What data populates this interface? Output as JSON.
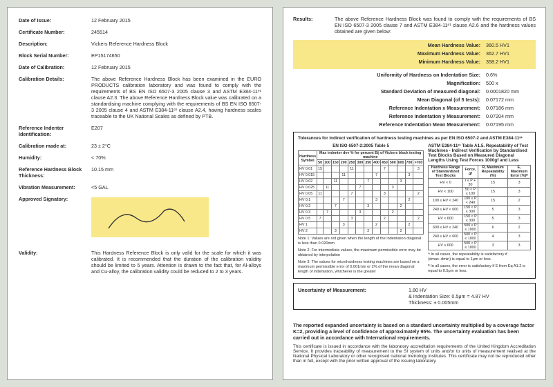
{
  "left": {
    "dateIssueL": "Date of Issue:",
    "dateIssue": "12 February 2015",
    "certL": "Certificate Number:",
    "cert": "245514",
    "descL": "Description:",
    "desc": "Vickers Reference Hardness Block",
    "serialL": "Block Serial Number:",
    "serial": "EP15174650",
    "calDateL": "Date of Calibration:",
    "calDate": "12 February 2015",
    "calDetL": "Calibration Details:",
    "calDet": "The above Reference Hardness Block has been examined in the EURO PRODUCTS calibration laboratory and was found to comply with the requirements of BS EN ISO 6507-3 2005 clause 3 and ASTM E384-11ᵉ¹ clause A2.3. The above Reference Hardness Block value was calibrated on a standardising machine complying with the requirements of BS EN ISO 6507-3 2005 clause 4 and ASTM E384-11ᵉ¹ clause A2.4, having hardness scales traceable to the UK National Scales as defined by PTB.",
    "indentL": "Reference Indenter Identification:",
    "indent": "E207",
    "tempL": "Calibration made at:",
    "temp": "23 ± 2°C",
    "humL": "Humidity:",
    "hum": "< 70%",
    "thickL": "Reference Hardness Block Thickness:",
    "thick": "10.15 mm",
    "vibL": "Vibration Measurement:",
    "vib": "<5 GAL",
    "sigL": "Approved Signatory:",
    "validL": "Validity:",
    "valid": "This Hardness Reference Block is only valid for the scale for which it was calibrated. It is recommended that the duration of the calibration validity should be limited to 5 years. Attention is drawn to the fact that, for Al-alloys and Cu-alloy, the calibration validity could be reduced to 2 to 3 years."
  },
  "right": {
    "resL": "Results:",
    "res": "The above Reference Hardness Block was found to comply with the requirements of BS EN ISO 6507-3 2005 clause 7 and ASTM E384-11ᵉ¹ clause A2.6 and the hardness values obtained are given below:",
    "meanL": "Mean Hardness Value:",
    "mean": "360.5   HV1",
    "maxL": "Maximum Hardness Value:",
    "max": "362.7   HV1",
    "minL": "Minimum Hardness Value:",
    "min": "358.2   HV1",
    "uniL": "Uniformity of Hardness on Indentation Size:",
    "uni": "0.6%",
    "magL": "Magnification:",
    "mag": "500 x",
    "sdL": "Standard Deviation of measured diagonal:",
    "sd": "0.0001820 mm",
    "mdiagL": "Mean Diagonal (of 5 tests):",
    "mdiag": "0.07172 mm",
    "rxL": "Reference Indentation x Measurement:",
    "rx": "0.07186 mm",
    "ryL": "Reference Indentation y Measurement:",
    "ry": "0.07204 mm",
    "rmL": "Reference Indentation Mean Measurement:",
    "rm": "0.07195 mm",
    "tolHdr": "Tolerances for indirect verification of hardness testing machines as per EN ISO 6507-2 and ASTM E384-11ᵉ¹",
    "lHdr": "EN ISO 6507-2:2005 Table 5",
    "rHdr": "ASTM E384-11ᵉ¹ Table A1.5. Repeatability of Test Machines - Indirect Verification by Standardised Test Blocks Based on Measured Diagonal Lengths Using Test Forces 1000gf and Less",
    "leftRows": [
      "HV 0.01",
      "HV 0.015",
      "HV 0.02",
      "HV 0.025",
      "HV 0.05",
      "HV 0.1",
      "HV 0.2",
      "HV 0.3",
      "HV 0.5",
      "HV 1",
      "HV 2"
    ],
    "note1": "Note 1: Values are not given when the length of the indentation diagonal is less than 0.020mm",
    "note2": "Note 2: For intermediate values, the maximum permissible error may be obtained by interpolation",
    "note3": "Note 3: The values for microhardness testing machines are based on a maximum permissible error of 0.001mm or 2% of the mean diagonal length of indentation, whichever is the greater",
    "rightRows": [
      [
        "HV < 0",
        "r ≤ P + 30",
        "15",
        "3"
      ],
      [
        "HV < 100",
        "50 < P ≤ 100",
        "15",
        "3"
      ],
      [
        "100 ≤ HV < 240",
        "100 ≤ P < 240",
        "15",
        "2"
      ],
      [
        "240 ≤ HV < 600",
        "150 < P ≤ 300",
        "5",
        "3"
      ],
      [
        "HV < 600",
        "150 < P ≤ 300",
        "5",
        "3"
      ],
      [
        "600 ≤ HV ≤ 240",
        "500 ≤ P ≤ 1000",
        "6",
        "2"
      ],
      [
        "240 ≤ HV < 600",
        "500 < P ≤ 1000",
        "4",
        "3"
      ],
      [
        "HV ≥ 600",
        "500 < P ≤ 1000",
        "3",
        "3"
      ]
    ],
    "rightFoot1": "ᴬ In all cases, the repeatability is satisfactory if (dmax−dmin) is equal to 1μm or less.",
    "rightFoot2": "ᴮ In all cases, the error is satisfactory if E from Eq A1.2 is equal to 0.5μm or less.",
    "uomL": "Uncertainty of Measurement:",
    "uom1": "1.80 HV",
    "uom2": "& Indentation Size: 0.5μm = 4.87 HV",
    "uom3": "Thickness:  ± 0.005mm",
    "foot": "The reported expanded uncertainty is based on a standard uncertainty multiplied by a coverage factor K=2, providing a level of confidence of approximately 95%. The uncertainty evaluation has been carried out in accordance with International requirements.",
    "foot2": "This certificate is issued in accordance with the laboratory accreditation requirements of the United Kingdom Accreditation Service. It provides traceability of measurement to the SI system of units and/or to units of measurement realised at the National Physical Laboratory or other recognised national metrology institutes. This certificate may not be reproduced other than in full, except with the prior written approval of the issuing laboratory."
  }
}
